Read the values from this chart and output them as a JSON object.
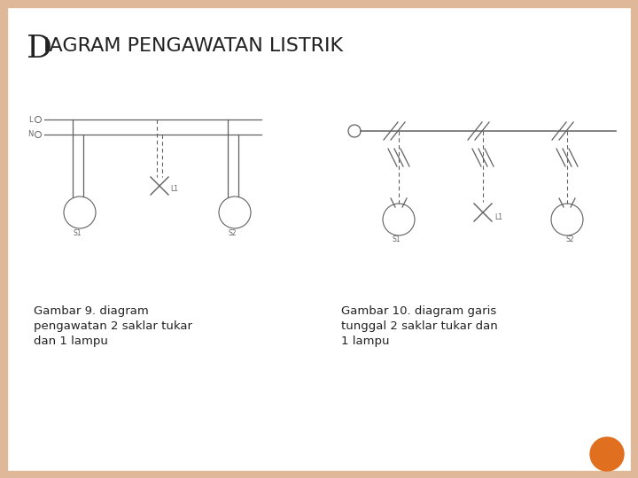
{
  "title": "DIAGRAM PENGAWATAN LISTRIK",
  "title_D": "D",
  "title_rest": "IAGRAM PENGAWATAN LISTRIK",
  "title_fontsize": 18,
  "caption1": "Gambar 9. diagram\npengawatan 2 saklar tukar\ndan 1 lampu",
  "caption2": "Gambar 10. diagram garis\ntunggal 2 saklar tukar dan\n1 lampu",
  "bg_color": "#FFFFFF",
  "border_color": "#DEB898",
  "line_color": "#606060",
  "text_color": "#222222",
  "orange_dot_color": "#E07020",
  "fig_width": 7.2,
  "fig_height": 5.4,
  "dpi": 100
}
